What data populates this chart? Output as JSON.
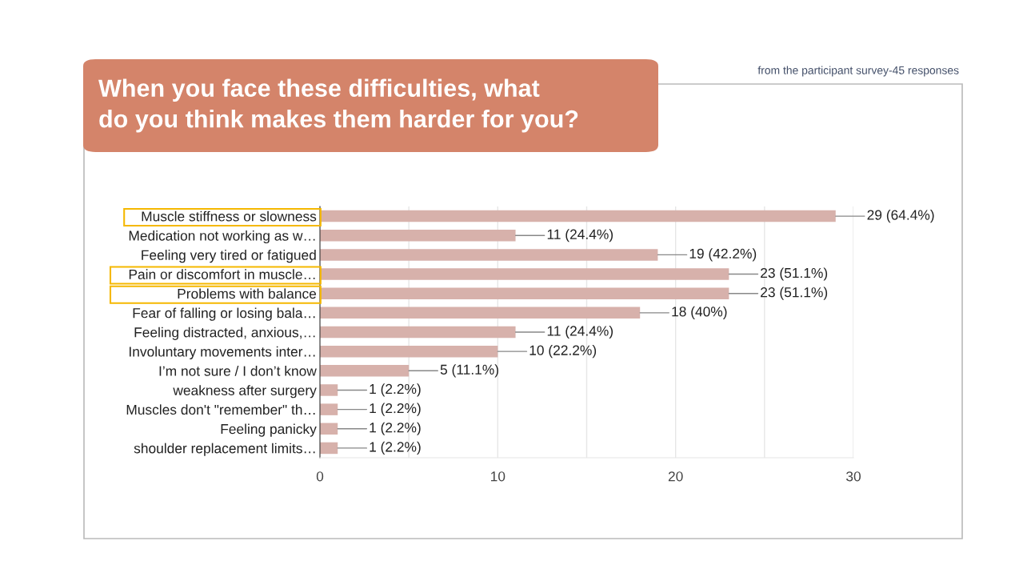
{
  "chart_data": {
    "type": "bar",
    "orientation": "horizontal",
    "title": "When you face these difficulties, what\ndo you think makes them harder for you?",
    "subtitle": "from the participant survey-45 responses",
    "categories": [
      "Muscle stiffness or slowness",
      "Medication not working as w…",
      "Feeling very tired or fatigued",
      "Pain or discomfort in muscle…",
      "Problems with balance",
      "Fear of falling or losing bala…",
      "Feeling distracted, anxious,…",
      "Involuntary movements inter…",
      "I’m not sure / I don’t know",
      "weakness after surgery",
      "Muscles don't \"remember\" th…",
      "Feeling panicky",
      "shoulder replacement limits…"
    ],
    "values": [
      29,
      11,
      19,
      23,
      23,
      18,
      11,
      10,
      5,
      1,
      1,
      1,
      1
    ],
    "value_labels": [
      "29 (64.4%)",
      "11 (24.4%)",
      "19 (42.2%)",
      "23 (51.1%)",
      "23 (51.1%)",
      "18 (40%)",
      "11 (24.4%)",
      "10 (22.2%)",
      "5 (11.1%)",
      "1 (2.2%)",
      "1 (2.2%)",
      "1 (2.2%)",
      "1 (2.2%)"
    ],
    "color": "#d7b1ab",
    "xlim": [
      0,
      30
    ],
    "xticks": [
      0,
      {
        "value": 5,
        "label": null
      },
      10,
      {
        "value": 15,
        "label": null
      },
      20,
      {
        "value": 25,
        "label": null
      },
      30
    ],
    "grid": "x"
  }
}
